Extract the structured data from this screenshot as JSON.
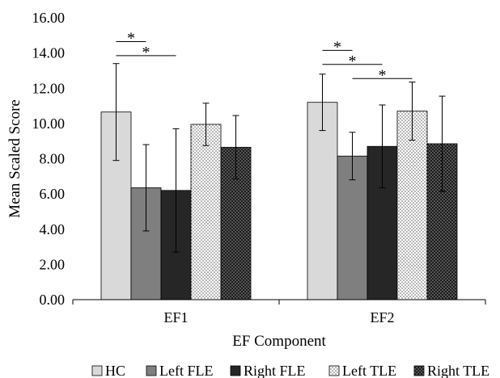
{
  "chart_data": {
    "type": "bar",
    "xlabel": "EF Component",
    "ylabel": "Mean Scaled Score",
    "categories": [
      "EF1",
      "EF2"
    ],
    "ylim": [
      0,
      16
    ],
    "y_ticks": [
      "0.00",
      "2.00",
      "4.00",
      "6.00",
      "8.00",
      "10.00",
      "12.00",
      "14.00",
      "16.00"
    ],
    "grid": false,
    "legend_position": "bottom",
    "series": [
      {
        "name": "HC",
        "values": [
          10.65,
          11.2
        ],
        "error": [
          2.75,
          1.6
        ],
        "fill": "#d9d9d9",
        "pattern": "solid"
      },
      {
        "name": "Left FLE",
        "values": [
          6.35,
          8.15
        ],
        "error": [
          2.45,
          1.35
        ],
        "fill": "#7f7f7f",
        "pattern": "solid"
      },
      {
        "name": "Right FLE",
        "values": [
          6.2,
          8.7
        ],
        "error": [
          3.5,
          2.35
        ],
        "fill": "#262626",
        "pattern": "solid"
      },
      {
        "name": "Left TLE",
        "values": [
          9.95,
          10.7
        ],
        "error": [
          1.2,
          1.65
        ],
        "fill": "#ffffff",
        "pattern": "light-dots"
      },
      {
        "name": "Right TLE",
        "values": [
          8.65,
          8.85
        ],
        "error": [
          1.8,
          2.7
        ],
        "fill": "#262626",
        "pattern": "dark-dots"
      }
    ],
    "significance": [
      {
        "category": "EF1",
        "from": "HC",
        "to": "Left FLE",
        "label": "*",
        "y": 14.65
      },
      {
        "category": "EF1",
        "from": "HC",
        "to": "Right FLE",
        "label": "*",
        "y": 13.85
      },
      {
        "category": "EF2",
        "from": "HC",
        "to": "Left FLE",
        "label": "*",
        "y": 14.15
      },
      {
        "category": "EF2",
        "from": "HC",
        "to": "Right FLE",
        "label": "*",
        "y": 13.35
      },
      {
        "category": "EF2",
        "from": "Left FLE",
        "to": "Left TLE",
        "label": "*",
        "y": 12.55
      }
    ]
  }
}
